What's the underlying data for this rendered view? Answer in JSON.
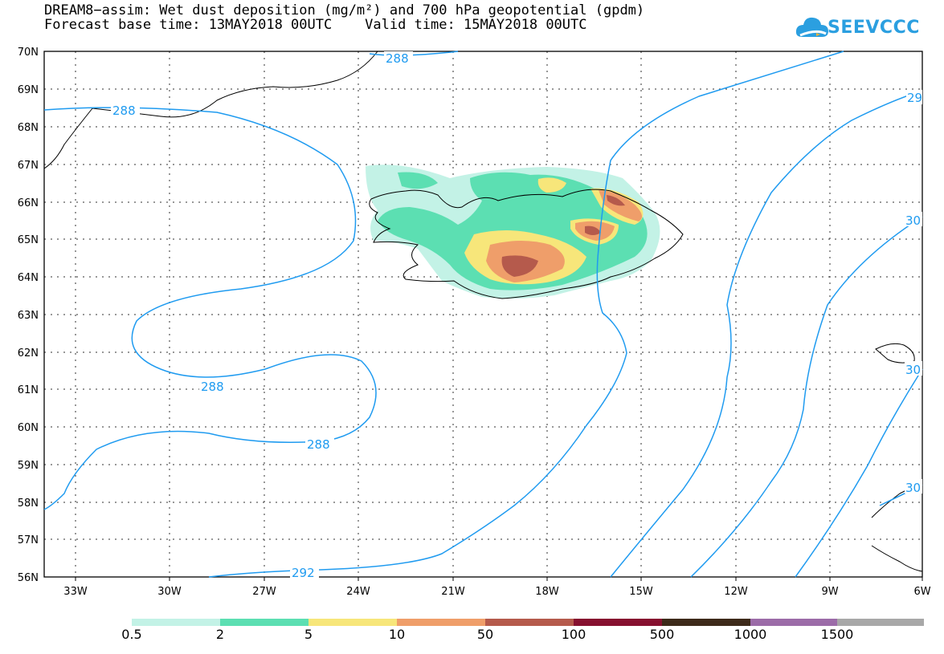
{
  "title": {
    "line1": "DREAM8−assim: Wet dust deposition (mg/m²) and 700 hPa geopotential (gpdm)",
    "line2": "Forecast base time: 13MAY2018 00UTC    Valid time: 15MAY2018 00UTC"
  },
  "logo": {
    "text": "SEEVCCC",
    "icon": "cloud-icon"
  },
  "map": {
    "lat_labels": [
      "70N",
      "69N",
      "68N",
      "67N",
      "66N",
      "65N",
      "64N",
      "63N",
      "62N",
      "61N",
      "60N",
      "59N",
      "58N",
      "57N",
      "56N"
    ],
    "lon_labels": [
      "33W",
      "30W",
      "27W",
      "24W",
      "21W",
      "18W",
      "15W",
      "12W",
      "9W",
      "6W"
    ],
    "contour_labels": [
      "288",
      "288",
      "288",
      "288",
      "292",
      "29",
      "30",
      "30",
      "30"
    ],
    "contour_color": "#1f9bf0"
  },
  "colorbar": {
    "labels": [
      "0.5",
      "2",
      "5",
      "10",
      "50",
      "100",
      "500",
      "1000",
      "1500"
    ],
    "colors": [
      "#c3f2e6",
      "#5cdfb2",
      "#f7e67a",
      "#ef9e6a",
      "#b55a4c",
      "#86102f",
      "#3d2a1a",
      "#9c6ca8",
      "#a8a8a8"
    ]
  }
}
